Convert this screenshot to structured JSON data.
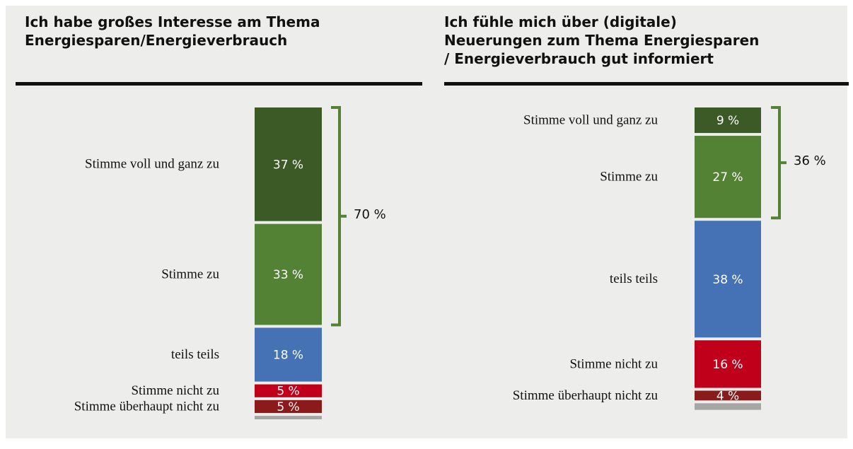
{
  "chart_data": [
    {
      "type": "stacked_column",
      "title": "Ich habe großes Interesse am Thema\nEnergiesparen/Energieverbrauch",
      "categories": [
        "Stimme voll und ganz zu",
        "Stimme zu",
        "teils teils",
        "Stimme nicht zu",
        "Stimme überhaupt nicht zu",
        null
      ],
      "values": [
        37,
        33,
        18,
        5,
        5,
        2
      ],
      "value_labels": [
        "37 %",
        "33 %",
        "18 %",
        "5 %",
        "5 %",
        null
      ],
      "colors": [
        "#3b5a26",
        "#548235",
        "#4472b4",
        "#c0001a",
        "#8b1a1a",
        "#a6a6a6"
      ],
      "bracket_label": "70 %"
    },
    {
      "type": "stacked_column",
      "title": "Ich fühle mich über (digitale)\nNeuerungen zum Thema Energiesparen\n/ Energieverbrauch gut informiert",
      "categories": [
        "Stimme voll und ganz zu",
        "Stimme zu",
        "teils teils",
        "Stimme nicht zu",
        "Stimme überhaupt nicht zu",
        null
      ],
      "values": [
        9,
        27,
        38,
        16,
        4,
        3
      ],
      "value_labels": [
        "9 %",
        "27 %",
        "38 %",
        "16 %",
        "4 %",
        null
      ],
      "colors": [
        "#3b5a26",
        "#548235",
        "#4472b4",
        "#c0001a",
        "#8b1a1a",
        "#a6a6a6"
      ],
      "bracket_label": "36 %"
    }
  ]
}
